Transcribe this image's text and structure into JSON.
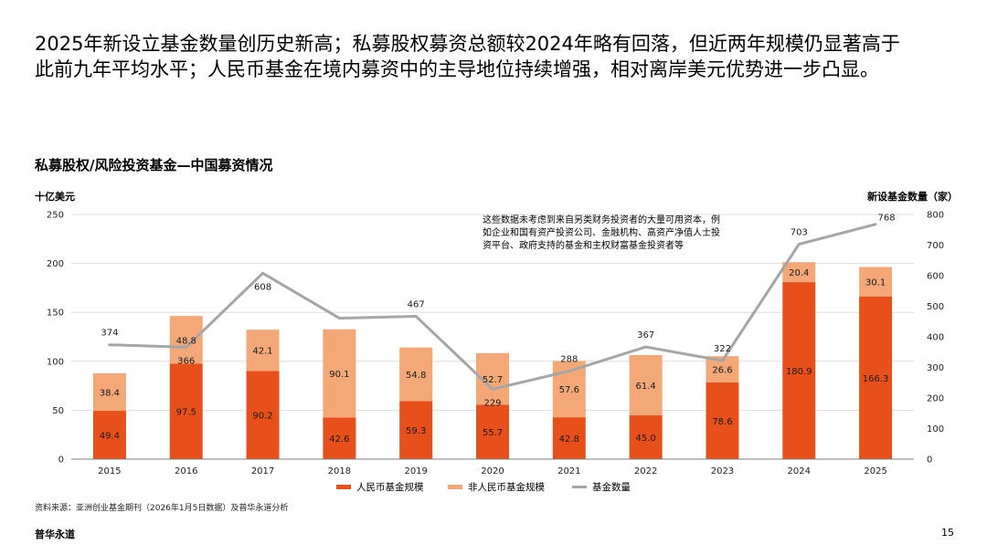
{
  "headline": {
    "line1": "2025年新设立基金数量创历史新高；私募股权募资总额较2024年略有回落，但近两年规模仍显著高于",
    "line2": "此前九年平均水平；人民币基金在境内募资中的主导地位持续增强，相对离岸美元优势进一步凸显。"
  },
  "footer": {
    "source": "资料来源：亚洲创业基金期刊（2026年1月5日数据）及普华永道分析",
    "brand": "普华永道",
    "page": "15"
  },
  "colors": {
    "rmb": "#e8501b",
    "non_rmb": "#f4a878",
    "count_line": "#a6a6a6"
  },
  "chart_data": {
    "type": "bar",
    "title": "私募股权/风险投资基金—中国募资情况",
    "ylabel": "十亿美元",
    "y2label": "新设基金数量（家）",
    "ylim": [
      0,
      250
    ],
    "y2lim": [
      0,
      800
    ],
    "yticks": [
      0,
      50,
      100,
      150,
      200,
      250
    ],
    "y2ticks": [
      0,
      100,
      200,
      300,
      400,
      500,
      600,
      700,
      800
    ],
    "stacked": true,
    "grid": true,
    "legend_position": "bottom",
    "categories": [
      "2015",
      "2016",
      "2017",
      "2018",
      "2019",
      "2020",
      "2021",
      "2022",
      "2023",
      "2024",
      "2025"
    ],
    "series": [
      {
        "name": "人民币基金规模",
        "kind": "bar",
        "axis": "left",
        "values": [
          49.4,
          97.5,
          90.2,
          42.6,
          59.3,
          55.7,
          42.8,
          45.0,
          78.6,
          180.9,
          166.3
        ]
      },
      {
        "name": "非人民币基金规模",
        "kind": "bar",
        "axis": "left",
        "values": [
          38.4,
          48.8,
          42.1,
          90.1,
          54.8,
          52.7,
          57.6,
          61.4,
          26.6,
          20.4,
          30.1
        ]
      },
      {
        "name": "基金数量",
        "kind": "line",
        "axis": "right",
        "values": [
          374,
          366,
          608,
          461,
          467,
          229,
          288,
          367,
          322,
          703,
          768
        ]
      }
    ],
    "bar_labels_rmb": [
      "49.4",
      "97.5",
      "90.2",
      "42.6",
      "59.3",
      "55.7",
      "42.8",
      "45.0",
      "78.6",
      "180.9",
      "166.3"
    ],
    "bar_labels_non_rmb": [
      "38.4",
      "48.8",
      "42.1",
      "90.1",
      "54.8",
      "52.7",
      "57.6",
      "61.4",
      "26.6",
      "20.4",
      "30.1"
    ],
    "line_labels": [
      "374",
      "366",
      "608",
      "",
      "467",
      "229",
      "288",
      "367",
      "322",
      "703",
      "768"
    ],
    "annotation": "这些数据未考虑到来自另类财务投资者的大量可用资本，例如企业和国有资产投资公司、金融机构、高资产净值人士投资平台、政府支持的基金和主权财富基金投资者等"
  }
}
